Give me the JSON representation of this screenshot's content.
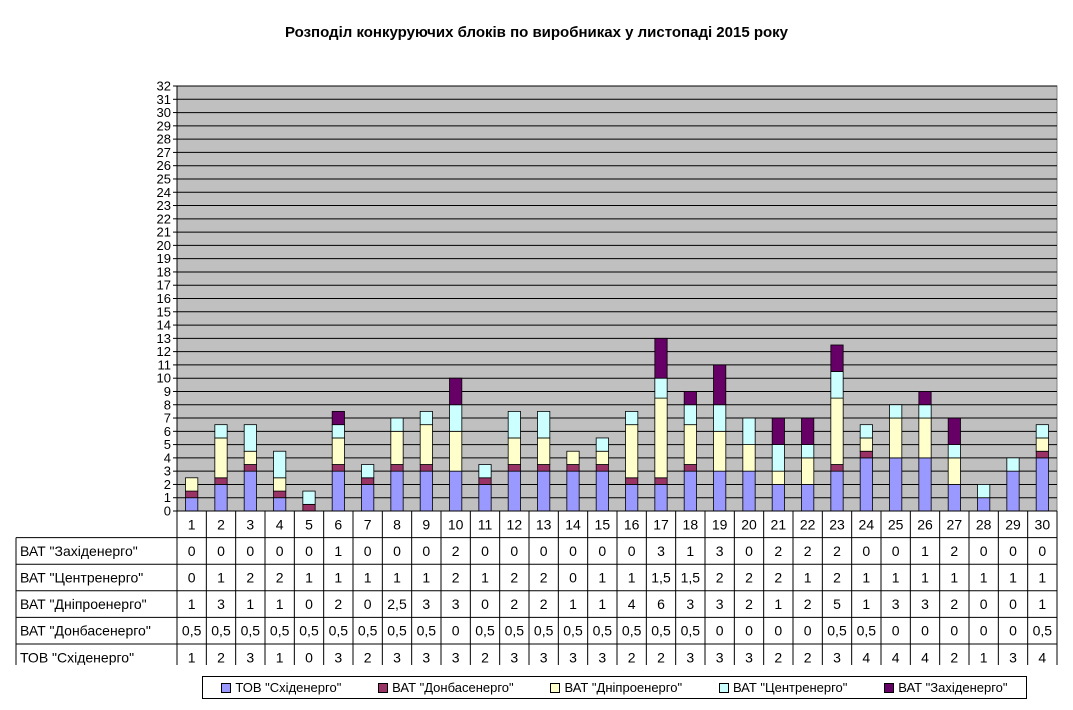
{
  "chart_data": {
    "type": "bar",
    "stacked": true,
    "title": "Розподіл конкуруючих блоків по виробниках у листопаді 2015 року",
    "xlabel": "",
    "ylabel": "",
    "ylim": [
      0,
      32
    ],
    "grid": true,
    "legend_position": "bottom",
    "plot_background": "#c0c0c0",
    "categories": [
      "1",
      "2",
      "3",
      "4",
      "5",
      "6",
      "7",
      "8",
      "9",
      "10",
      "11",
      "12",
      "13",
      "14",
      "15",
      "16",
      "17",
      "18",
      "19",
      "20",
      "21",
      "22",
      "23",
      "24",
      "25",
      "26",
      "27",
      "28",
      "29",
      "30"
    ],
    "series": [
      {
        "name": "ТОВ \"Східенерго\"",
        "color": "#9999ff",
        "values": [
          1,
          2,
          3,
          1,
          0,
          3,
          2,
          3,
          3,
          3,
          2,
          3,
          3,
          3,
          3,
          2,
          2,
          3,
          3,
          3,
          2,
          2,
          3,
          4,
          4,
          4,
          2,
          1,
          3,
          4
        ],
        "labels": [
          "1",
          "2",
          "3",
          "1",
          "0",
          "3",
          "2",
          "3",
          "3",
          "3",
          "2",
          "3",
          "3",
          "3",
          "3",
          "2",
          "2",
          "3",
          "3",
          "3",
          "2",
          "2",
          "3",
          "4",
          "4",
          "4",
          "2",
          "1",
          "3",
          "4"
        ]
      },
      {
        "name": "ВАТ \"Донбасенерго\"",
        "color": "#993366",
        "values": [
          0.5,
          0.5,
          0.5,
          0.5,
          0.5,
          0.5,
          0.5,
          0.5,
          0.5,
          0,
          0.5,
          0.5,
          0.5,
          0.5,
          0.5,
          0.5,
          0.5,
          0.5,
          0,
          0,
          0,
          0,
          0.5,
          0.5,
          0,
          0,
          0,
          0,
          0,
          0.5
        ],
        "labels": [
          "0,5",
          "0,5",
          "0,5",
          "0,5",
          "0,5",
          "0,5",
          "0,5",
          "0,5",
          "0,5",
          "0",
          "0,5",
          "0,5",
          "0,5",
          "0,5",
          "0,5",
          "0,5",
          "0,5",
          "0,5",
          "0",
          "0",
          "0",
          "0",
          "0,5",
          "0,5",
          "0",
          "0",
          "0",
          "0",
          "0",
          "0,5"
        ]
      },
      {
        "name": "ВАТ \"Дніпроенерго\"",
        "color": "#ffffcc",
        "values": [
          1,
          3,
          1,
          1,
          0,
          2,
          0,
          2.5,
          3,
          3,
          0,
          2,
          2,
          1,
          1,
          4,
          6,
          3,
          3,
          2,
          1,
          2,
          5,
          1,
          3,
          3,
          2,
          0,
          0,
          1
        ],
        "labels": [
          "1",
          "3",
          "1",
          "1",
          "0",
          "2",
          "0",
          "2,5",
          "3",
          "3",
          "0",
          "2",
          "2",
          "1",
          "1",
          "4",
          "6",
          "3",
          "3",
          "2",
          "1",
          "2",
          "5",
          "1",
          "3",
          "3",
          "2",
          "0",
          "0",
          "1"
        ]
      },
      {
        "name": "ВАТ \"Центренерго\"",
        "color": "#ccffff",
        "values": [
          0,
          1,
          2,
          2,
          1,
          1,
          1,
          1,
          1,
          2,
          1,
          2,
          2,
          0,
          1,
          1,
          1.5,
          1.5,
          2,
          2,
          2,
          1,
          2,
          1,
          1,
          1,
          1,
          1,
          1,
          1
        ],
        "labels": [
          "0",
          "1",
          "2",
          "2",
          "1",
          "1",
          "1",
          "1",
          "1",
          "2",
          "1",
          "2",
          "2",
          "0",
          "1",
          "1",
          "1,5",
          "1,5",
          "2",
          "2",
          "2",
          "1",
          "2",
          "1",
          "1",
          "1",
          "1",
          "1",
          "1",
          "1"
        ]
      },
      {
        "name": "ВАТ \"Західенерго\"",
        "color": "#660066",
        "values": [
          0,
          0,
          0,
          0,
          0,
          1,
          0,
          0,
          0,
          2,
          0,
          0,
          0,
          0,
          0,
          0,
          3,
          1,
          3,
          0,
          2,
          2,
          2,
          0,
          0,
          1,
          2,
          0,
          0,
          0
        ],
        "labels": [
          "0",
          "0",
          "0",
          "0",
          "0",
          "1",
          "0",
          "0",
          "0",
          "2",
          "0",
          "0",
          "0",
          "0",
          "0",
          "0",
          "3",
          "1",
          "3",
          "0",
          "2",
          "2",
          "2",
          "0",
          "0",
          "1",
          "2",
          "0",
          "0",
          "0"
        ]
      }
    ],
    "table_row_order": [
      4,
      3,
      2,
      1,
      0
    ]
  }
}
